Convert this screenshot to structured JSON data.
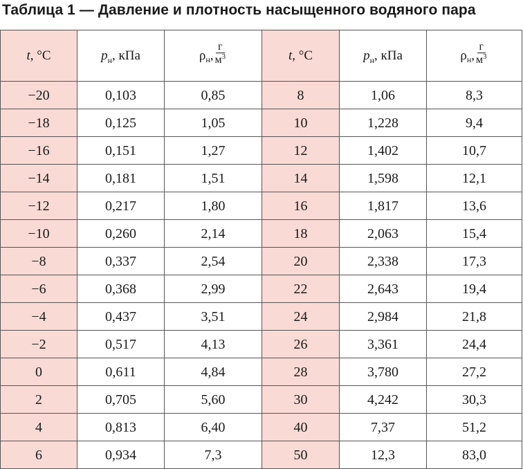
{
  "title": "Таблица 1 — Давление и плотность насыщенного водяного пара",
  "header": {
    "t_symbol": "t",
    "t_unit": ", °C",
    "p_symbol": "p",
    "p_sub": "н",
    "p_unit": ", кПа",
    "rho_symbol": "ρ",
    "rho_sub": "н",
    "rho_comma": ",",
    "rho_num": "г",
    "rho_den": "м",
    "rho_den_exp": "3"
  },
  "rows": [
    {
      "t1": "−20",
      "p1": "0,103",
      "r1": "0,85",
      "t2": "8",
      "p2": "1,06",
      "r2": "8,3"
    },
    {
      "t1": "−18",
      "p1": "0,125",
      "r1": "1,05",
      "t2": "10",
      "p2": "1,228",
      "r2": "9,4"
    },
    {
      "t1": "−16",
      "p1": "0,151",
      "r1": "1,27",
      "t2": "12",
      "p2": "1,402",
      "r2": "10,7"
    },
    {
      "t1": "−14",
      "p1": "0,181",
      "r1": "1,51",
      "t2": "14",
      "p2": "1,598",
      "r2": "12,1"
    },
    {
      "t1": "−12",
      "p1": "0,217",
      "r1": "1,80",
      "t2": "16",
      "p2": "1,817",
      "r2": "13,6"
    },
    {
      "t1": "−10",
      "p1": "0,260",
      "r1": "2,14",
      "t2": "18",
      "p2": "2,063",
      "r2": "15,4"
    },
    {
      "t1": "−8",
      "p1": "0,337",
      "r1": "2,54",
      "t2": "20",
      "p2": "2,338",
      "r2": "17,3"
    },
    {
      "t1": "−6",
      "p1": "0,368",
      "r1": "2,99",
      "t2": "22",
      "p2": "2,643",
      "r2": "19,4"
    },
    {
      "t1": "−4",
      "p1": "0,437",
      "r1": "3,51",
      "t2": "24",
      "p2": "2,984",
      "r2": "21,8"
    },
    {
      "t1": "−2",
      "p1": "0,517",
      "r1": "4,13",
      "t2": "26",
      "p2": "3,361",
      "r2": "24,4"
    },
    {
      "t1": "0",
      "p1": "0,611",
      "r1": "4,84",
      "t2": "28",
      "p2": "3,780",
      "r2": "27,2"
    },
    {
      "t1": "2",
      "p1": "0,705",
      "r1": "5,60",
      "t2": "30",
      "p2": "4,242",
      "r2": "30,3"
    },
    {
      "t1": "4",
      "p1": "0,813",
      "r1": "6,40",
      "t2": "40",
      "p2": "7,37",
      "r2": "51,2"
    },
    {
      "t1": "6",
      "p1": "0,934",
      "r1": "7,3",
      "t2": "50",
      "p2": "12,3",
      "r2": "83,0"
    }
  ],
  "colors": {
    "temperature_column_bg": "#f9dad5",
    "border": "#555555",
    "text": "#1a1a1a"
  }
}
